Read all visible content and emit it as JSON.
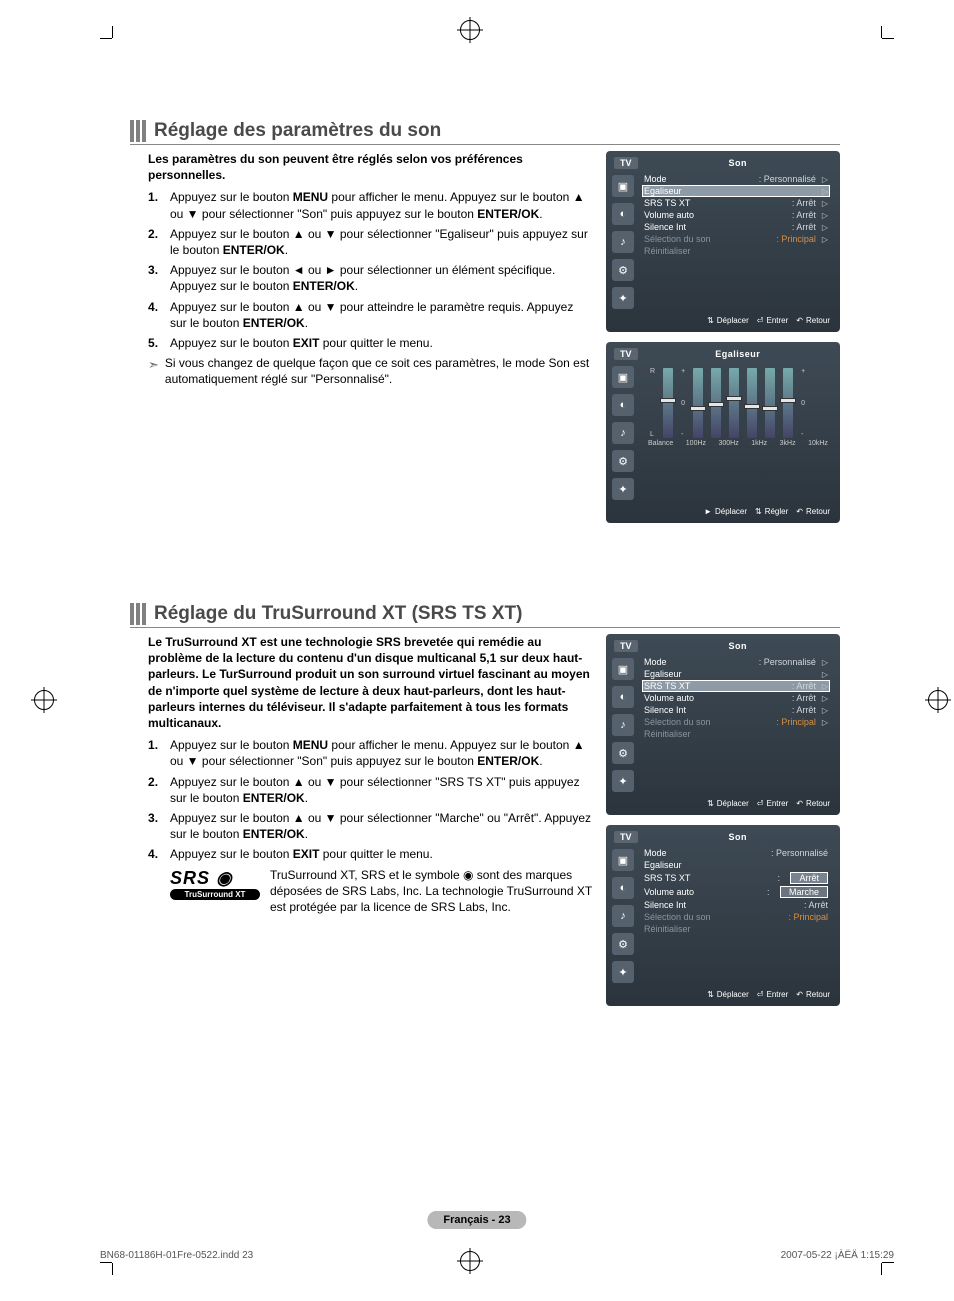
{
  "glyphs": {
    "up": "▲",
    "down": "▼",
    "left": "◄",
    "right": "►",
    "tri": "▷",
    "enter": "⏎",
    "back": "↶",
    "updown": "⇅",
    "note": "➣",
    "eye": "◉"
  },
  "section1": {
    "title": "Réglage des paramètres du son",
    "lead": "Les paramètres du son peuvent être réglés selon vos préférences personnelles.",
    "steps": [
      "Appuyez sur le bouton <b>MENU</b> pour afficher le menu. Appuyez sur le bouton ▲ ou ▼ pour sélectionner \"Son\" puis appuyez sur le bouton <b>ENTER/OK</b>.",
      "Appuyez sur le bouton ▲ ou ▼ pour sélectionner \"Egaliseur\" puis appuyez sur le bouton <b>ENTER/OK</b>.",
      "Appuyez sur le bouton ◄ ou ► pour sélectionner un élément spécifique. Appuyez sur le bouton <b>ENTER/OK</b>.",
      "Appuyez sur le bouton ▲ ou ▼ pour atteindre le paramètre requis. Appuyez sur le bouton <b>ENTER/OK</b>.",
      "Appuyez sur le bouton <b>EXIT</b> pour quitter le menu."
    ],
    "note": "Si vous changez de quelque façon que ce soit ces paramètres, le mode Son est automatiquement réglé sur \"Personnalisé\"."
  },
  "section2": {
    "title": "Réglage du TruSurround XT (SRS TS XT)",
    "lead": "Le TruSurround XT est une technologie SRS brevetée qui remédie au problème de la lecture du contenu d'un disque multicanal 5,1 sur deux haut-parleurs. Le TurSurround produit un son surround virtuel fascinant au moyen de n'importe quel système de lecture à deux haut-parleurs, dont les haut-parleurs internes du téléviseur. Il s'adapte parfaitement à tous les formats multicanaux.",
    "steps": [
      "Appuyez sur le bouton <b>MENU</b> pour afficher le menu. Appuyez sur le bouton ▲ ou ▼ pour sélectionner \"Son\" puis appuyez sur le bouton <b>ENTER/OK</b>.",
      "Appuyez sur le bouton ▲ ou ▼ pour sélectionner \"SRS TS XT\" puis appuyez sur le bouton <b>ENTER/OK</b>.",
      "Appuyez sur le bouton ▲ ou ▼ pour sélectionner \"Marche\" ou \"Arrêt\". Appuyez sur le bouton <b>ENTER/OK</b>.",
      "Appuyez sur le bouton <b>EXIT</b> pour quitter le menu."
    ],
    "srs_badge": "TruSurround XT",
    "srs_logo_top": "SRS",
    "srs_text": "TruSurround XT, SRS et le symbole ◉ sont des marques déposées de SRS Labs, Inc. La technologie TruSurround XT est protégée par la licence de SRS Labs, Inc."
  },
  "osd_son": {
    "tv": "TV",
    "title": "Son",
    "rows": [
      {
        "label": "Mode",
        "value": ": Personnalisé",
        "tri": true
      },
      {
        "label": "Egaliseur",
        "value": "",
        "tri": true
      },
      {
        "label": "SRS TS XT",
        "value": ": Arrêt",
        "tri": true
      },
      {
        "label": "Volume auto",
        "value": ": Arrêt",
        "tri": true
      },
      {
        "label": "Silence Int",
        "value": ": Arrêt",
        "tri": true
      },
      {
        "label": "Sélection du son",
        "value": ": Principal",
        "tri": true,
        "dim": true
      },
      {
        "label": "Réinitialiser",
        "value": "",
        "tri": false,
        "dim": true
      }
    ],
    "foot": {
      "move": "Déplacer",
      "enter": "Entrer",
      "back": "Retour"
    }
  },
  "osd_eq": {
    "tv": "TV",
    "title": "Egaliseur",
    "side": {
      "r": "R",
      "l": "L",
      "plus": "+",
      "zero": "0",
      "minus": "-"
    },
    "bands": [
      "Balance",
      "100Hz",
      "300Hz",
      "1kHz",
      "3kHz",
      "10kHz"
    ],
    "positions": [
      30,
      38,
      34,
      28,
      36,
      38,
      30
    ],
    "foot": {
      "move": "Déplacer",
      "adjust": "Régler",
      "back": "Retour"
    }
  },
  "osd_srs_sel": {
    "tv": "TV",
    "title": "Son",
    "selected_index": 2
  },
  "osd_srs_drop": {
    "tv": "TV",
    "title": "Son",
    "mode_label": "Mode",
    "mode_val": ": Personnalisé",
    "eq_label": "Egaliseur",
    "srs_label": "SRS TS XT",
    "vol_label": "Volume auto",
    "sil_label": "Silence Int",
    "sil_val": ": Arrêt",
    "sel_label": "Sélection du son",
    "sel_val": ": Principal",
    "rst_label": "Réinitialiser",
    "options": [
      "Arrêt",
      "Marche"
    ]
  },
  "icons": [
    "▣",
    "◐",
    "♪",
    "⚙",
    "✦"
  ],
  "page_num": "Français - 23",
  "foot_left": "BN68-01186H-01Fre-0522.indd   23",
  "foot_right": "2007-05-22   ¡ÀËÄ 1:15:29"
}
